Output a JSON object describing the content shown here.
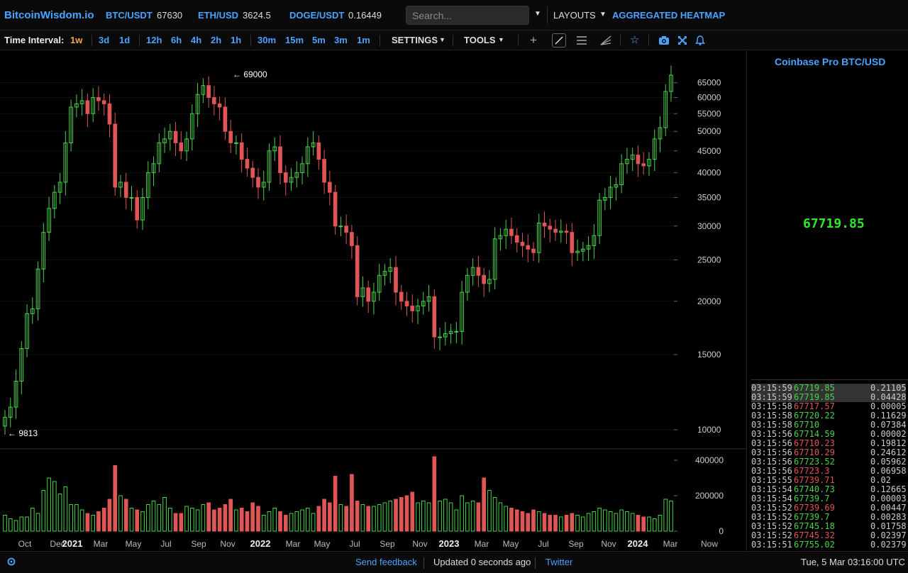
{
  "header": {
    "logo": "BitcoinWisdom.io",
    "tickers": [
      {
        "symbol": "BTC/USDT",
        "price": "67630"
      },
      {
        "symbol": "ETH/USD",
        "price": "3624.5"
      },
      {
        "symbol": "DOGE/USDT",
        "price": "0.16449"
      }
    ],
    "search_placeholder": "Search...",
    "layouts_label": "LAYOUTS",
    "heatmap_label": "AGGREGATED HEATMAP"
  },
  "toolbar": {
    "time_interval_label": "Time Interval:",
    "intervals": [
      "1w",
      "3d",
      "1d",
      "12h",
      "6h",
      "4h",
      "2h",
      "1h",
      "30m",
      "15m",
      "5m",
      "3m",
      "1m"
    ],
    "active_interval": "1w",
    "settings_label": "SETTINGS",
    "tools_label": "TOOLS",
    "icons": [
      "plus-icon",
      "line-tool-icon",
      "horizontal-lines-icon",
      "fan-tool-icon",
      "star-icon",
      "camera-icon",
      "fullscreen-icon",
      "bell-icon"
    ]
  },
  "chart_data": {
    "type": "candlestick",
    "price_axis_ticks": [
      65000,
      60000,
      55000,
      50000,
      45000,
      40000,
      35000,
      30000,
      25000,
      20000,
      15000,
      10000
    ],
    "price_scale": "log",
    "volume_axis_ticks": [
      400000,
      200000,
      0
    ],
    "x_tick_labels": [
      "Oct",
      "Dec",
      "2021",
      "Mar",
      "May",
      "Jul",
      "Sep",
      "Nov",
      "2022",
      "Mar",
      "May",
      "Jul",
      "Sep",
      "Nov",
      "2023",
      "Mar",
      "May",
      "Jul",
      "Sep",
      "Nov",
      "2024",
      "Mar",
      "Now"
    ],
    "annotations": [
      {
        "text": "← 69000",
        "value": 69000
      },
      {
        "text": "← 9813",
        "value": 9813
      }
    ],
    "weekly_close": [
      10700,
      11300,
      13000,
      15500,
      18700,
      19200,
      23800,
      29000,
      33000,
      36000,
      38000,
      47000,
      57000,
      58000,
      59000,
      55000,
      60000,
      59000,
      58000,
      52000,
      37000,
      38000,
      35000,
      35000,
      31000,
      35000,
      40000,
      42000,
      47000,
      48000,
      50000,
      47000,
      45000,
      48000,
      55000,
      61000,
      64000,
      60000,
      58000,
      57000,
      50000,
      47000,
      47000,
      43000,
      41000,
      39000,
      37000,
      38000,
      45000,
      46000,
      40000,
      38000,
      39000,
      40000,
      42000,
      46000,
      47000,
      43000,
      38000,
      36000,
      30000,
      30000,
      29000,
      27000,
      20500,
      21500,
      20000,
      21000,
      23000,
      23500,
      24000,
      21000,
      20000,
      19500,
      19000,
      19500,
      20000,
      20500,
      16500,
      16500,
      16800,
      17000,
      17000,
      21000,
      23000,
      24000,
      23000,
      22000,
      22500,
      28000,
      28500,
      29500,
      28500,
      27500,
      27000,
      26500,
      26000,
      30500,
      30000,
      29500,
      29000,
      29200,
      29000,
      26000,
      26200,
      26500,
      27000,
      28500,
      34500,
      35000,
      37000,
      37500,
      42000,
      43000,
      44000,
      42000,
      41500,
      43000,
      48000,
      51000,
      62000,
      67700
    ],
    "weekly_volume": [
      90000,
      70000,
      60000,
      80000,
      80000,
      130000,
      100000,
      230000,
      300000,
      280000,
      210000,
      250000,
      150000,
      150000,
      120000,
      100000,
      90000,
      110000,
      130000,
      180000,
      370000,
      200000,
      180000,
      130000,
      120000,
      110000,
      150000,
      170000,
      150000,
      190000,
      130000,
      100000,
      100000,
      140000,
      130000,
      120000,
      150000,
      160000,
      120000,
      130000,
      150000,
      180000,
      120000,
      130000,
      110000,
      160000,
      140000,
      90000,
      110000,
      130000,
      110000,
      90000,
      100000,
      110000,
      120000,
      130000,
      100000,
      140000,
      180000,
      160000,
      310000,
      150000,
      140000,
      320000,
      170000,
      150000,
      140000,
      140000,
      150000,
      160000,
      170000,
      180000,
      190000,
      200000,
      220000,
      160000,
      170000,
      160000,
      420000,
      170000,
      180000,
      160000,
      120000,
      200000,
      160000,
      170000,
      160000,
      300000,
      230000,
      190000,
      160000,
      140000,
      130000,
      120000,
      110000,
      100000,
      120000,
      110000,
      100000,
      90000,
      90000,
      80000,
      90000,
      100000,
      90000,
      80000,
      100000,
      110000,
      130000,
      120000,
      110000,
      100000,
      120000,
      110000,
      100000,
      90000,
      80000,
      80000,
      70000,
      90000,
      180000,
      170000
    ]
  },
  "sidepanel": {
    "title": "Coinbase Pro BTC/USD",
    "last_price": "67719.85",
    "trades": [
      {
        "time": "03:15:59",
        "price": "67719.85",
        "amount": "0.21105",
        "dir": "up",
        "hl": true
      },
      {
        "time": "03:15:59",
        "price": "67719.85",
        "amount": "0.04428",
        "dir": "up",
        "hl": true
      },
      {
        "time": "03:15:58",
        "price": "67717.57",
        "amount": "0.00005",
        "dir": "down",
        "hl": false
      },
      {
        "time": "03:15:58",
        "price": "67720.22",
        "amount": "0.11629",
        "dir": "up",
        "hl": false
      },
      {
        "time": "03:15:58",
        "price": "67710",
        "amount": "0.07384",
        "dir": "up",
        "hl": false
      },
      {
        "time": "03:15:56",
        "price": "67714.59",
        "amount": "0.00002",
        "dir": "up",
        "hl": false
      },
      {
        "time": "03:15:56",
        "price": "67710.23",
        "amount": "0.19812",
        "dir": "down",
        "hl": false
      },
      {
        "time": "03:15:56",
        "price": "67710.29",
        "amount": "0.24612",
        "dir": "down",
        "hl": false
      },
      {
        "time": "03:15:56",
        "price": "67723.52",
        "amount": "0.05962",
        "dir": "up",
        "hl": false
      },
      {
        "time": "03:15:56",
        "price": "67723.3",
        "amount": "0.06958",
        "dir": "down",
        "hl": false
      },
      {
        "time": "03:15:55",
        "price": "67739.71",
        "amount": "0.02",
        "dir": "down",
        "hl": false
      },
      {
        "time": "03:15:54",
        "price": "67740.73",
        "amount": "0.12665",
        "dir": "up",
        "hl": false
      },
      {
        "time": "03:15:54",
        "price": "67739.7",
        "amount": "0.00003",
        "dir": "up",
        "hl": false
      },
      {
        "time": "03:15:52",
        "price": "67739.69",
        "amount": "0.00447",
        "dir": "down",
        "hl": false
      },
      {
        "time": "03:15:52",
        "price": "67739.7",
        "amount": "0.00283",
        "dir": "up",
        "hl": false
      },
      {
        "time": "03:15:52",
        "price": "67745.18",
        "amount": "0.01758",
        "dir": "up",
        "hl": false
      },
      {
        "time": "03:15:52",
        "price": "67745.32",
        "amount": "0.02397",
        "dir": "down",
        "hl": false
      },
      {
        "time": "03:15:51",
        "price": "67755.02",
        "amount": "0.02379",
        "dir": "up",
        "hl": false
      }
    ]
  },
  "footer": {
    "feedback_label": "Send feedback",
    "updated_text": "Updated 0 seconds ago",
    "twitter_label": "Twitter",
    "datetime": "Tue, 5 Mar 03:16:00 UTC"
  },
  "colors": {
    "accent": "#4aa3ff",
    "up": "#47d347",
    "down": "#e05555",
    "active_interval": "#f5a742"
  }
}
